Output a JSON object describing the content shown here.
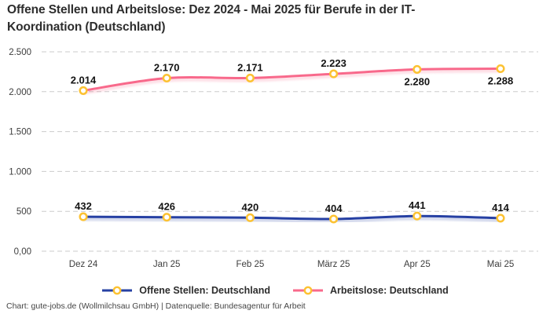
{
  "chart_data": {
    "type": "line",
    "title": "Offene Stellen und Arbeitslose: Dez 2024 - Mai 2025 für Berufe in der IT-Koordination (Deutschland)",
    "categories": [
      "Dez 24",
      "Jan 25",
      "Feb 25",
      "März 25",
      "Apr 25",
      "Mai 25"
    ],
    "series": [
      {
        "name": "Offene Stellen: Deutschland",
        "color": "#2640a3",
        "values": [
          432,
          426,
          420,
          404,
          441,
          414
        ],
        "labels": [
          "432",
          "426",
          "420",
          "404",
          "441",
          "414"
        ],
        "label_position": [
          "above",
          "above",
          "above",
          "above",
          "above",
          "above"
        ]
      },
      {
        "name": "Arbeitslose: Deutschland",
        "color": "#f8698b",
        "values": [
          2014,
          2170,
          2171,
          2223,
          2280,
          2288
        ],
        "labels": [
          "2.014",
          "2.170",
          "2.171",
          "2.223",
          "2.280",
          "2.288"
        ],
        "label_position": [
          "above",
          "above",
          "above",
          "above",
          "below",
          "below"
        ]
      }
    ],
    "marker": {
      "ring_color": "#fcc232",
      "fill_color": "#ffffff"
    },
    "y_axis": {
      "range": [
        0,
        2500
      ],
      "ticks": [
        0,
        500,
        1000,
        1500,
        2000,
        2500
      ],
      "tick_labels": [
        "0,00",
        "500",
        "1.000",
        "1.500",
        "2.000",
        "2.500"
      ]
    },
    "grid": {
      "show": true,
      "style": "dashed",
      "color": "#cbcbcb"
    },
    "legend_position": "bottom",
    "xlabel": "",
    "ylabel": ""
  },
  "footer": {
    "text": "Chart: gute-jobs.de (Wollmilchsau GmbH) | Datenquelle: Bundesagentur für Arbeit"
  }
}
